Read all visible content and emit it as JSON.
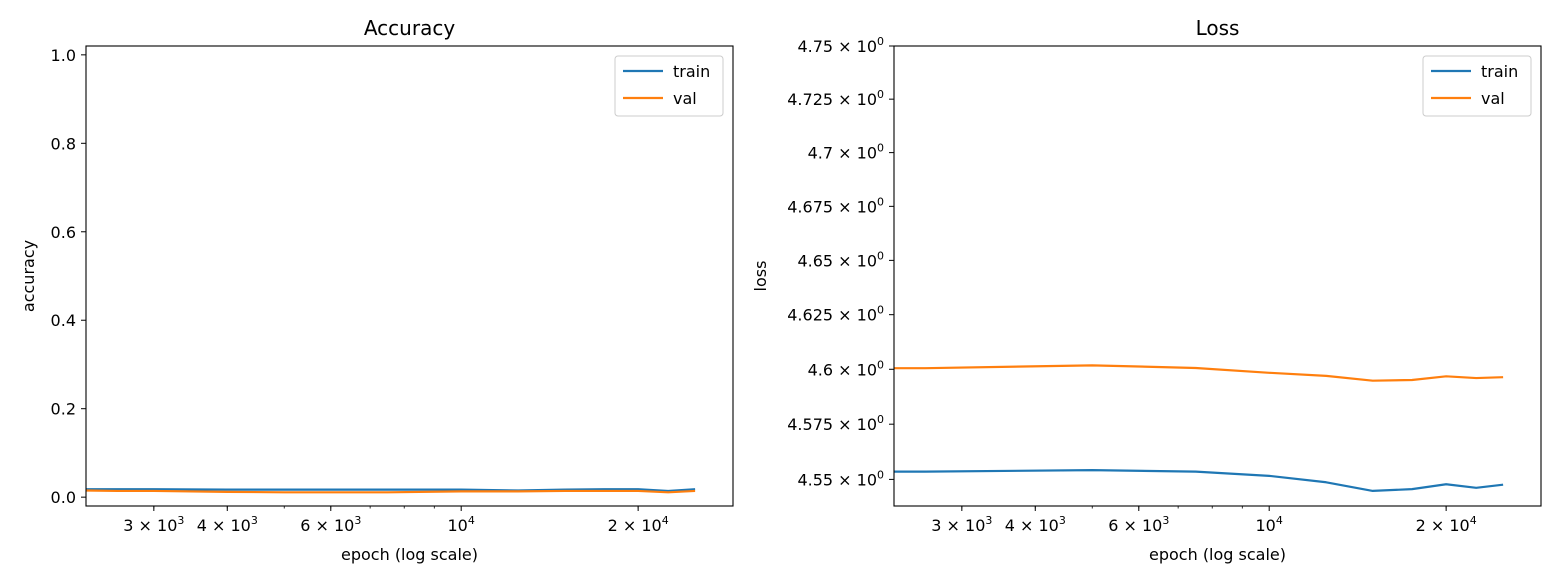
{
  "chart_data": [
    {
      "type": "line",
      "title": "Accuracy",
      "xlabel": "epoch (log scale)",
      "ylabel": "accuracy",
      "x_scale": "log",
      "y_scale": "linear",
      "xlim": [
        2300,
        29000
      ],
      "ylim": [
        -0.02,
        1.02
      ],
      "x_ticks": [
        {
          "value": 3000,
          "mantissa": "3",
          "exp": "3"
        },
        {
          "value": 4000,
          "mantissa": "4",
          "exp": "3"
        },
        {
          "value": 6000,
          "mantissa": "6",
          "exp": "3"
        },
        {
          "value": 10000,
          "mantissa": "",
          "exp": "4"
        },
        {
          "value": 20000,
          "mantissa": "2",
          "exp": "4"
        }
      ],
      "y_ticks": [
        {
          "value": 0.0,
          "label": "0.0"
        },
        {
          "value": 0.2,
          "label": "0.2"
        },
        {
          "value": 0.4,
          "label": "0.4"
        },
        {
          "value": 0.6,
          "label": "0.6"
        },
        {
          "value": 0.8,
          "label": "0.8"
        },
        {
          "value": 1.0,
          "label": "1.0"
        }
      ],
      "legend": "upper right",
      "grid": false,
      "series": [
        {
          "name": "train",
          "color": "#1f77b4",
          "x": [
            2300,
            2600,
            3000,
            4000,
            5000,
            7500,
            10000,
            12500,
            15000,
            17500,
            20000,
            22500,
            25000
          ],
          "y": [
            0.018,
            0.018,
            0.018,
            0.017,
            0.017,
            0.017,
            0.017,
            0.015,
            0.017,
            0.018,
            0.018,
            0.014,
            0.018
          ]
        },
        {
          "name": "val",
          "color": "#ff7f0e",
          "x": [
            2300,
            2600,
            3000,
            4000,
            5000,
            7500,
            10000,
            12500,
            15000,
            17500,
            20000,
            22500,
            25000
          ],
          "y": [
            0.015,
            0.014,
            0.014,
            0.012,
            0.011,
            0.011,
            0.013,
            0.013,
            0.014,
            0.014,
            0.014,
            0.011,
            0.014
          ]
        }
      ]
    },
    {
      "type": "line",
      "title": "Loss",
      "xlabel": "epoch (log scale)",
      "ylabel": "loss",
      "x_scale": "log",
      "y_scale": "log",
      "xlim": [
        2300,
        29000
      ],
      "ylim": [
        4.538,
        4.75
      ],
      "x_ticks": [
        {
          "value": 3000,
          "mantissa": "3",
          "exp": "3"
        },
        {
          "value": 4000,
          "mantissa": "4",
          "exp": "3"
        },
        {
          "value": 6000,
          "mantissa": "6",
          "exp": "3"
        },
        {
          "value": 10000,
          "mantissa": "",
          "exp": "4"
        },
        {
          "value": 20000,
          "mantissa": "2",
          "exp": "4"
        }
      ],
      "y_ticks": [
        {
          "value": 4.55,
          "mantissa": "4.55",
          "exp": "0"
        },
        {
          "value": 4.575,
          "mantissa": "4.575",
          "exp": "0"
        },
        {
          "value": 4.6,
          "mantissa": "4.6",
          "exp": "0"
        },
        {
          "value": 4.625,
          "mantissa": "4.625",
          "exp": "0"
        },
        {
          "value": 4.65,
          "mantissa": "4.65",
          "exp": "0"
        },
        {
          "value": 4.675,
          "mantissa": "4.675",
          "exp": "0"
        },
        {
          "value": 4.7,
          "mantissa": "4.7",
          "exp": "0"
        },
        {
          "value": 4.725,
          "mantissa": "4.725",
          "exp": "0"
        },
        {
          "value": 4.75,
          "mantissa": "4.75",
          "exp": "0"
        }
      ],
      "legend": "upper right",
      "grid": false,
      "series": [
        {
          "name": "train",
          "color": "#1f77b4",
          "x": [
            2300,
            2600,
            5000,
            7500,
            10000,
            12500,
            15000,
            17500,
            20000,
            22500,
            25000
          ],
          "y": [
            4.5535,
            4.5535,
            4.5542,
            4.5535,
            4.5516,
            4.5487,
            4.5448,
            4.5456,
            4.5478,
            4.5462,
            4.5476
          ]
        },
        {
          "name": "val",
          "color": "#ff7f0e",
          "x": [
            2300,
            2600,
            5000,
            7500,
            10000,
            12500,
            15000,
            17500,
            20000,
            22500,
            25000
          ],
          "y": [
            4.6005,
            4.6005,
            4.6018,
            4.6006,
            4.5984,
            4.597,
            4.5948,
            4.5951,
            4.5968,
            4.596,
            4.5964
          ]
        }
      ]
    }
  ]
}
